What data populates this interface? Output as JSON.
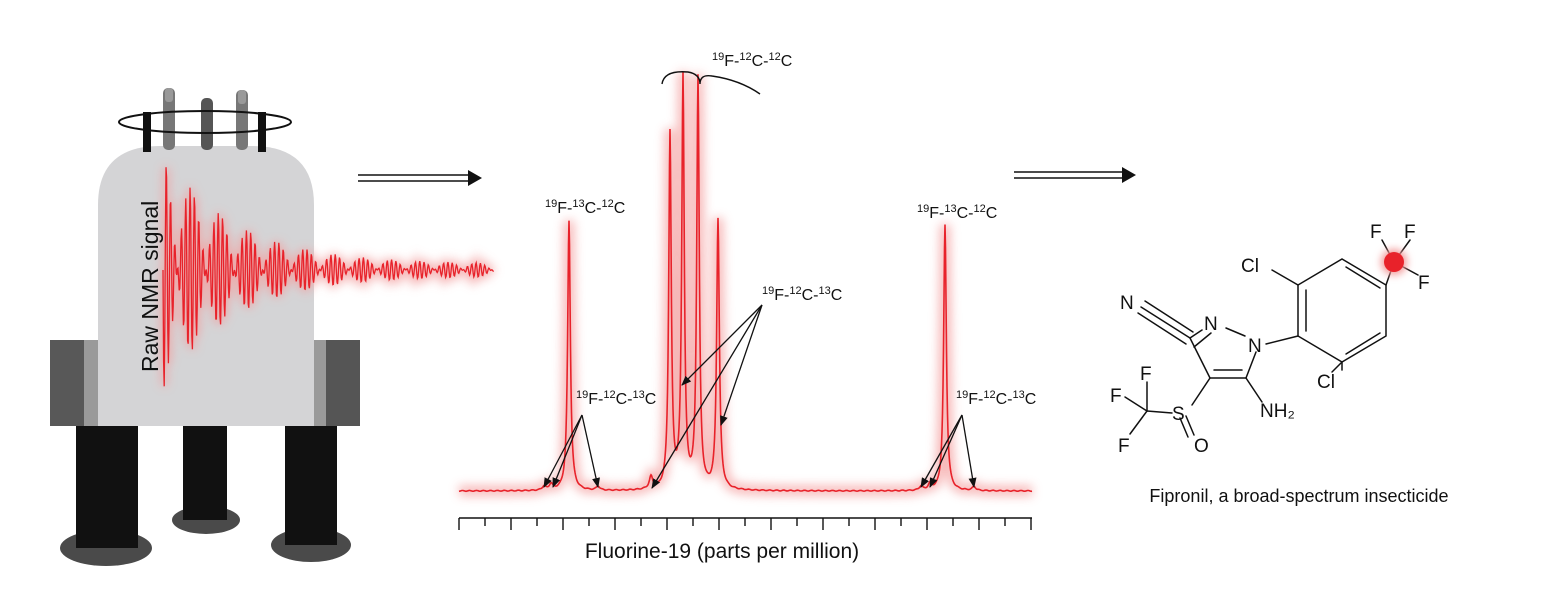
{
  "magnet": {
    "signal_label": "Raw NMR signal"
  },
  "spectrum": {
    "axis_label": "Fluorine-19 (parts per million)",
    "labels": {
      "top": {
        "sup1": "19",
        "el1": "F-",
        "sup2": "12",
        "el2": "C-",
        "sup3": "12",
        "el3": "C"
      },
      "left_main": {
        "sup1": "19",
        "el1": "F-",
        "sup2": "13",
        "el2": "C-",
        "sup3": "12",
        "el3": "C"
      },
      "left_sat": {
        "sup1": "19",
        "el1": "F-",
        "sup2": "12",
        "el2": "C-",
        "sup3": "13",
        "el3": "C"
      },
      "center_sat": {
        "sup1": "19",
        "el1": "F-",
        "sup2": "12",
        "el2": "C-",
        "sup3": "13",
        "el3": "C"
      },
      "right_main": {
        "sup1": "19",
        "el1": "F-",
        "sup2": "13",
        "el2": "C-",
        "sup3": "12",
        "el3": "C"
      },
      "right_sat": {
        "sup1": "19",
        "el1": "F-",
        "sup2": "12",
        "el2": "C-",
        "sup3": "13",
        "el3": "C"
      }
    },
    "colors": {
      "signal": "#e8222a",
      "glow": "#f6b0b0"
    }
  },
  "molecule": {
    "caption": "Fipronil, a broad-spectrum insecticide",
    "atoms": {
      "n_nitrile": "N",
      "n1": "N",
      "n2": "N",
      "cl_top": "Cl",
      "cl_bottom": "Cl",
      "f1": "F",
      "f2": "F",
      "f3": "F",
      "f4": "F",
      "f5": "F",
      "f6": "F",
      "s": "S",
      "o": "O",
      "nh2": "NH₂"
    },
    "highlight_color": "#e8222a"
  }
}
